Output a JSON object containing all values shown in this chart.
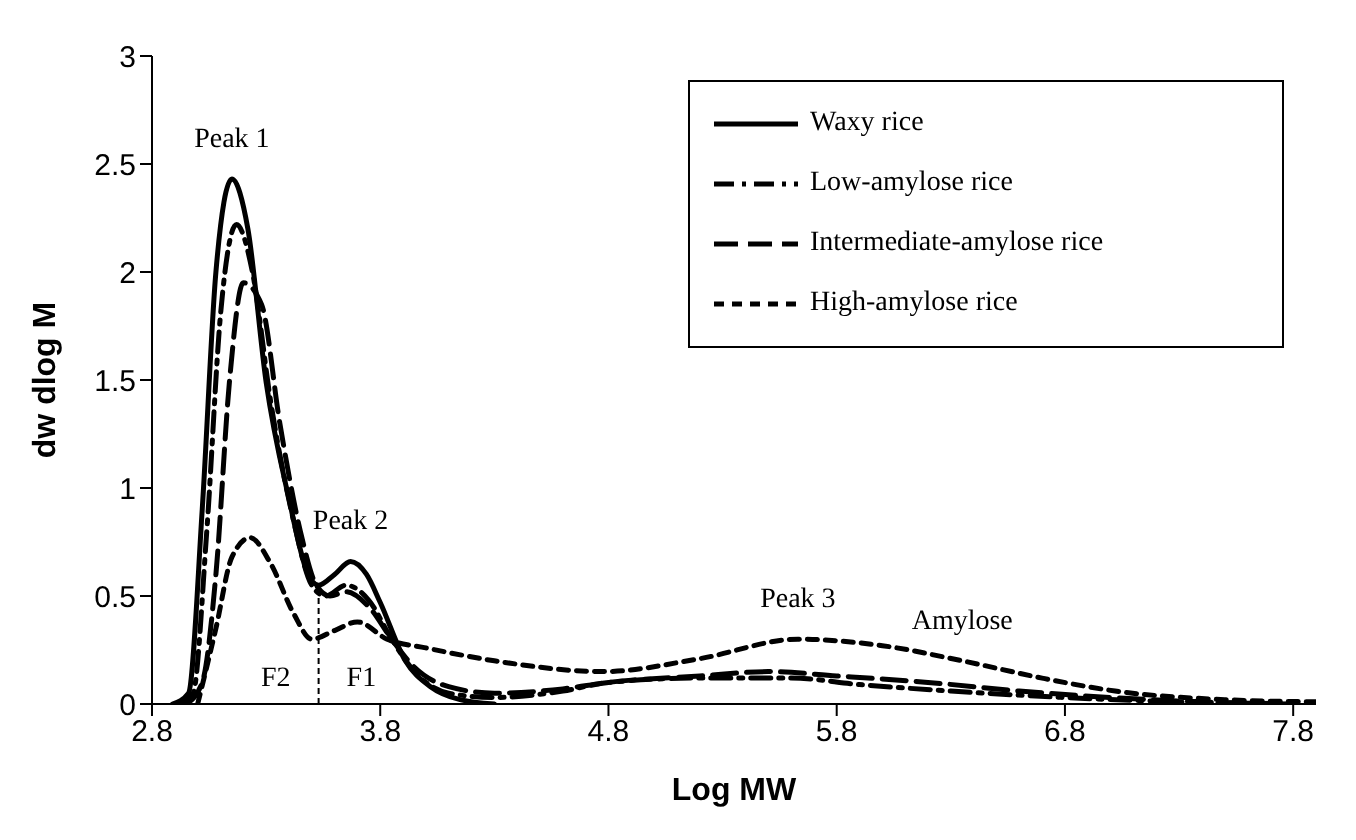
{
  "chart_data": {
    "type": "line",
    "xlabel": "Log MW",
    "ylabel": "dw dlog M",
    "xlim": [
      2.8,
      7.9
    ],
    "ylim": [
      0,
      3
    ],
    "xticks": [
      2.8,
      3.8,
      4.8,
      5.8,
      6.8,
      7.8
    ],
    "yticks": [
      0,
      0.5,
      1,
      1.5,
      2,
      2.5,
      3
    ],
    "grid": false,
    "legend": "top right",
    "marker": "none",
    "series": [
      {
        "name": "Waxy rice",
        "color": "#000000",
        "line_style": "solid",
        "x": [
          2.89,
          2.96,
          3.02,
          3.08,
          3.15,
          3.22,
          3.3,
          3.4,
          3.48,
          3.53,
          3.6,
          3.67,
          3.74,
          3.8,
          3.91,
          4.02,
          4.15,
          4.3
        ],
        "values": [
          0,
          0.05,
          0.9,
          2.0,
          2.43,
          2.2,
          1.49,
          0.95,
          0.61,
          0.55,
          0.6,
          0.66,
          0.6,
          0.47,
          0.2,
          0.08,
          0.02,
          0
        ]
      },
      {
        "name": "Low-amylose rice",
        "color": "#000000",
        "line_style": "dashdot",
        "x": [
          2.92,
          2.98,
          3.04,
          3.1,
          3.17,
          3.24,
          3.32,
          3.42,
          3.5,
          3.56,
          3.65,
          3.75,
          3.85,
          3.95,
          4.1,
          4.3,
          4.6,
          4.8,
          5.2,
          5.6,
          5.9,
          6.3,
          6.8,
          7.3,
          7.8
        ],
        "values": [
          0,
          0.05,
          0.8,
          1.8,
          2.22,
          2.0,
          1.4,
          0.85,
          0.55,
          0.5,
          0.55,
          0.48,
          0.3,
          0.15,
          0.05,
          0.03,
          0.06,
          0.1,
          0.12,
          0.12,
          0.09,
          0.06,
          0.03,
          0.01,
          0
        ]
      },
      {
        "name": "Intermediate-amylose rice",
        "color": "#000000",
        "line_style": "dashed",
        "x": [
          2.95,
          3.02,
          3.08,
          3.14,
          3.2,
          3.28,
          3.36,
          3.45,
          3.52,
          3.58,
          3.65,
          3.75,
          3.85,
          3.95,
          4.1,
          4.3,
          4.6,
          4.8,
          5.2,
          5.5,
          5.8,
          6.2,
          6.6,
          7.0,
          7.4,
          7.8
        ],
        "values": [
          0,
          0.1,
          0.6,
          1.5,
          1.95,
          1.85,
          1.3,
          0.8,
          0.55,
          0.5,
          0.52,
          0.45,
          0.3,
          0.17,
          0.08,
          0.05,
          0.07,
          0.1,
          0.13,
          0.15,
          0.13,
          0.1,
          0.06,
          0.03,
          0.01,
          0
        ]
      },
      {
        "name": "High-amylose rice",
        "color": "#000000",
        "line_style": "dotted",
        "x": [
          3.0,
          3.08,
          3.15,
          3.23,
          3.32,
          3.42,
          3.5,
          3.6,
          3.7,
          3.83,
          4.0,
          4.3,
          4.78,
          5.2,
          5.63,
          6.0,
          6.35,
          6.7,
          7.02,
          7.5,
          7.9
        ],
        "values": [
          0,
          0.35,
          0.68,
          0.77,
          0.65,
          0.42,
          0.3,
          0.34,
          0.38,
          0.3,
          0.26,
          0.2,
          0.15,
          0.21,
          0.3,
          0.27,
          0.2,
          0.12,
          0.06,
          0.02,
          0.01
        ]
      }
    ],
    "ref_lines": [
      {
        "axis": "x",
        "value": 3.53,
        "line_style": "dashed",
        "color": "#000000"
      }
    ],
    "annotations": [
      {
        "text": "Peak 1",
        "x": 3.15,
        "y": 2.43
      },
      {
        "text": "Peak 2",
        "x": 3.67,
        "y": 0.66
      },
      {
        "text": "Peak 3",
        "x": 5.63,
        "y": 0.3
      },
      {
        "text": "Amylose",
        "x": 6.35,
        "y": 0.2
      },
      "F2",
      "F1"
    ]
  }
}
